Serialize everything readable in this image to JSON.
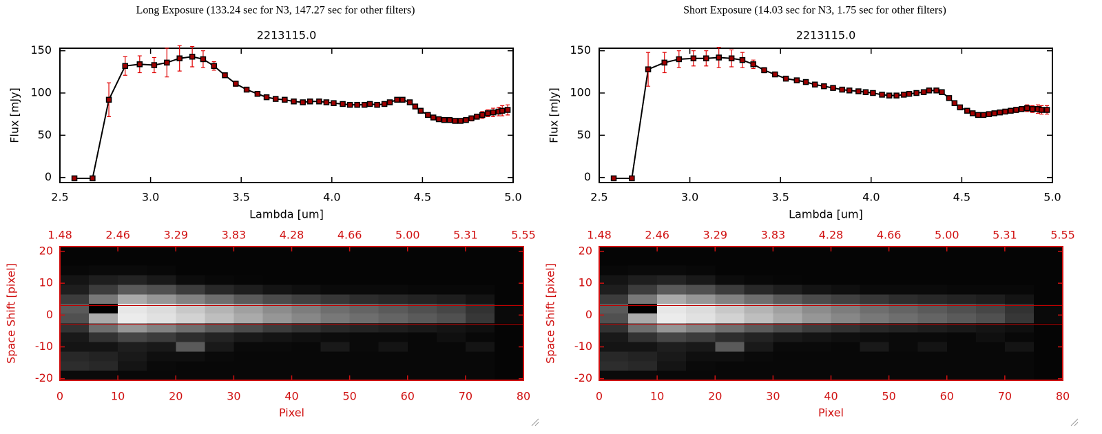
{
  "chart_data": [
    {
      "type": "line",
      "heading": "Long Exposure (133.24 sec for N3, 147.27 sec for other filters)",
      "title": "2213115.0",
      "x_label": "Lambda [um]",
      "y_label": "Flux [mJy]",
      "x": [
        2.58,
        2.68,
        2.77,
        2.86,
        2.94,
        3.02,
        3.09,
        3.16,
        3.23,
        3.29,
        3.35,
        3.41,
        3.47,
        3.53,
        3.59,
        3.64,
        3.69,
        3.74,
        3.79,
        3.84,
        3.88,
        3.93,
        3.97,
        4.01,
        4.06,
        4.1,
        4.14,
        4.18,
        4.21,
        4.25,
        4.29,
        4.32,
        4.36,
        4.39,
        4.43,
        4.46,
        4.49,
        4.53,
        4.56,
        4.59,
        4.62,
        4.65,
        4.68,
        4.71,
        4.74,
        4.77,
        4.8,
        4.83,
        4.86,
        4.89,
        4.92,
        4.94,
        4.97
      ],
      "values": [
        -1,
        -1,
        92,
        132,
        134,
        133,
        136,
        141,
        143,
        140,
        132,
        121,
        111,
        104,
        99,
        95,
        93,
        92,
        90,
        89,
        90,
        90,
        89,
        88,
        87,
        86,
        86,
        86,
        87,
        86,
        87,
        89,
        92,
        92,
        89,
        84,
        79,
        74,
        71,
        69,
        68,
        68,
        67,
        67,
        68,
        70,
        72,
        74,
        76,
        77,
        78,
        79,
        80
      ],
      "errors": [
        0,
        0,
        20,
        11,
        10,
        9,
        17,
        15,
        12,
        10,
        5,
        3,
        3,
        2,
        2,
        2,
        2,
        2,
        2,
        2,
        2,
        2,
        2,
        2,
        2,
        2,
        2,
        2,
        2,
        2,
        2,
        2,
        2,
        2,
        2,
        2,
        2,
        2,
        2,
        2,
        2,
        2,
        2,
        2,
        2,
        3,
        3,
        4,
        4,
        5,
        5,
        6,
        6
      ],
      "line_color": "#000000",
      "marker_color": "#a00000",
      "error_color": "#e00000",
      "xlim": [
        2.5,
        5.0
      ],
      "xticks": [
        2.5,
        {
          "value": 3,
          "label": "3.0"
        },
        3.5,
        {
          "value": 4,
          "label": "4.0"
        },
        4.5,
        {
          "value": 5,
          "label": "5.0"
        }
      ],
      "ylim": [
        -6,
        153
      ],
      "yticks": [
        0,
        50,
        100,
        150
      ]
    },
    {
      "type": "image",
      "x_label": "Pixel",
      "y_label": "Space Shift [pixel]",
      "axis_color": "#d01010",
      "hline_color": "#c00000",
      "xlim": [
        0,
        80
      ],
      "xticks": [
        0,
        10,
        20,
        30,
        40,
        50,
        60,
        70,
        80
      ],
      "x2ticks": [
        {
          "value": 0,
          "label": "1.48"
        },
        {
          "value": 10,
          "label": "2.46"
        },
        {
          "value": 20,
          "label": "3.29"
        },
        {
          "value": 30,
          "label": "3.83"
        },
        {
          "value": 40,
          "label": "4.28"
        },
        {
          "value": 50,
          "label": "4.66"
        },
        {
          "value": 60,
          "label": "5.00"
        },
        {
          "value": 70,
          "label": "5.31"
        },
        {
          "value": 80,
          "label": "5.55"
        }
      ],
      "ylim": [
        -20.5,
        21.5
      ],
      "yticks": [
        -20,
        -10,
        0,
        10,
        20
      ],
      "hlines": [
        3,
        -3
      ],
      "z": [
        [
          5,
          5,
          5,
          5,
          5,
          5,
          5,
          5,
          5,
          5,
          5,
          5,
          5,
          5,
          5,
          5
        ],
        [
          5,
          5,
          5,
          5,
          5,
          5,
          5,
          5,
          5,
          5,
          5,
          5,
          5,
          5,
          5,
          5
        ],
        [
          8,
          10,
          10,
          8,
          5,
          5,
          5,
          5,
          5,
          5,
          5,
          5,
          5,
          5,
          5,
          5
        ],
        [
          20,
          30,
          35,
          25,
          12,
          8,
          6,
          5,
          5,
          5,
          5,
          5,
          5,
          5,
          5,
          5
        ],
        [
          30,
          60,
          90,
          80,
          60,
          40,
          30,
          20,
          15,
          10,
          10,
          10,
          8,
          8,
          8,
          5
        ],
        [
          60,
          120,
          170,
          150,
          130,
          110,
          90,
          75,
          65,
          55,
          45,
          40,
          35,
          30,
          20,
          5
        ],
        [
          90,
          0,
          230,
          220,
          200,
          180,
          160,
          140,
          125,
          110,
          100,
          90,
          80,
          70,
          50,
          10
        ],
        [
          80,
          170,
          235,
          225,
          210,
          190,
          170,
          150,
          135,
          120,
          110,
          100,
          90,
          80,
          55,
          10
        ],
        [
          50,
          110,
          150,
          130,
          110,
          90,
          75,
          60,
          50,
          40,
          35,
          30,
          25,
          20,
          15,
          5
        ],
        [
          25,
          50,
          70,
          60,
          45,
          35,
          25,
          20,
          15,
          12,
          10,
          10,
          8,
          15,
          8,
          5
        ],
        [
          20,
          20,
          30,
          25,
          90,
          25,
          10,
          10,
          8,
          25,
          10,
          20,
          8,
          8,
          20,
          5
        ],
        [
          40,
          35,
          25,
          15,
          15,
          10,
          8,
          8,
          8,
          8,
          8,
          8,
          8,
          8,
          8,
          5
        ],
        [
          45,
          40,
          20,
          10,
          8,
          8,
          8,
          8,
          8,
          8,
          8,
          8,
          8,
          8,
          8,
          5
        ],
        [
          10,
          10,
          8,
          8,
          8,
          8,
          8,
          8,
          8,
          8,
          8,
          8,
          8,
          8,
          8,
          5
        ]
      ]
    },
    {
      "type": "line",
      "heading": "Short Exposure (14.03 sec for N3, 1.75 sec for other filters)",
      "title": "2213115.0",
      "x_label": "Lambda [um]",
      "y_label": "Flux [mJy]",
      "x": [
        2.58,
        2.68,
        2.77,
        2.86,
        2.94,
        3.02,
        3.09,
        3.16,
        3.23,
        3.29,
        3.35,
        3.41,
        3.47,
        3.53,
        3.59,
        3.64,
        3.69,
        3.74,
        3.79,
        3.84,
        3.88,
        3.93,
        3.97,
        4.01,
        4.06,
        4.1,
        4.14,
        4.18,
        4.21,
        4.25,
        4.29,
        4.32,
        4.36,
        4.39,
        4.43,
        4.46,
        4.49,
        4.53,
        4.56,
        4.59,
        4.62,
        4.65,
        4.68,
        4.71,
        4.74,
        4.77,
        4.8,
        4.83,
        4.86,
        4.89,
        4.92,
        4.94,
        4.97
      ],
      "values": [
        -1,
        -1,
        128,
        136,
        140,
        141,
        141,
        142,
        141,
        139,
        134,
        127,
        122,
        117,
        115,
        113,
        110,
        108,
        106,
        104,
        103,
        102,
        101,
        100,
        98,
        97,
        97,
        98,
        99,
        100,
        101,
        103,
        103,
        101,
        94,
        88,
        83,
        79,
        76,
        74,
        74,
        75,
        76,
        77,
        78,
        79,
        80,
        81,
        82,
        81,
        81,
        80,
        80
      ],
      "errors": [
        0,
        0,
        20,
        12,
        10,
        9,
        9,
        12,
        10,
        9,
        5,
        3,
        2,
        2,
        2,
        2,
        2,
        2,
        2,
        2,
        2,
        2,
        2,
        2,
        2,
        2,
        2,
        2,
        2,
        2,
        2,
        2,
        2,
        2,
        2,
        2,
        2,
        2,
        2,
        2,
        2,
        2,
        2,
        2,
        2,
        3,
        3,
        3,
        4,
        4,
        5,
        5,
        5
      ],
      "line_color": "#000000",
      "marker_color": "#a00000",
      "error_color": "#e00000",
      "xlim": [
        2.5,
        5.0
      ],
      "xticks": [
        2.5,
        {
          "value": 3,
          "label": "3.0"
        },
        3.5,
        {
          "value": 4,
          "label": "4.0"
        },
        4.5,
        {
          "value": 5,
          "label": "5.0"
        }
      ],
      "ylim": [
        -6,
        153
      ],
      "yticks": [
        0,
        50,
        100,
        150
      ]
    },
    {
      "type": "image",
      "x_label": "Pixel",
      "y_label": "Space Shift [pixel]",
      "axis_color": "#d01010",
      "hline_color": "#c00000",
      "xlim": [
        0,
        80
      ],
      "xticks": [
        0,
        10,
        20,
        30,
        40,
        50,
        60,
        70,
        80
      ],
      "x2ticks": [
        {
          "value": 0,
          "label": "1.48"
        },
        {
          "value": 10,
          "label": "2.46"
        },
        {
          "value": 20,
          "label": "3.29"
        },
        {
          "value": 30,
          "label": "3.83"
        },
        {
          "value": 40,
          "label": "4.28"
        },
        {
          "value": 50,
          "label": "4.66"
        },
        {
          "value": 60,
          "label": "5.00"
        },
        {
          "value": 70,
          "label": "5.31"
        },
        {
          "value": 80,
          "label": "5.55"
        }
      ],
      "ylim": [
        -20.5,
        21.5
      ],
      "yticks": [
        -20,
        -10,
        0,
        10,
        20
      ],
      "hlines": [
        3,
        -3
      ],
      "z": [
        [
          5,
          5,
          5,
          5,
          5,
          5,
          5,
          5,
          5,
          5,
          5,
          5,
          5,
          5,
          5,
          5
        ],
        [
          5,
          5,
          5,
          5,
          5,
          5,
          5,
          5,
          5,
          5,
          5,
          5,
          5,
          5,
          5,
          5
        ],
        [
          8,
          10,
          10,
          8,
          5,
          5,
          5,
          5,
          5,
          5,
          5,
          5,
          5,
          5,
          5,
          5
        ],
        [
          20,
          30,
          35,
          25,
          12,
          8,
          6,
          5,
          5,
          5,
          5,
          5,
          5,
          5,
          5,
          5
        ],
        [
          30,
          60,
          90,
          80,
          60,
          40,
          30,
          20,
          15,
          10,
          10,
          10,
          8,
          8,
          8,
          5
        ],
        [
          60,
          120,
          170,
          150,
          130,
          110,
          90,
          75,
          65,
          55,
          45,
          40,
          35,
          30,
          20,
          5
        ],
        [
          90,
          0,
          230,
          220,
          200,
          180,
          160,
          140,
          125,
          110,
          100,
          90,
          80,
          70,
          50,
          10
        ],
        [
          80,
          170,
          235,
          225,
          210,
          190,
          170,
          150,
          135,
          120,
          110,
          100,
          90,
          80,
          55,
          10
        ],
        [
          50,
          110,
          150,
          130,
          110,
          90,
          75,
          60,
          50,
          40,
          35,
          30,
          25,
          20,
          15,
          5
        ],
        [
          25,
          50,
          70,
          60,
          45,
          35,
          25,
          20,
          15,
          12,
          10,
          10,
          8,
          15,
          8,
          5
        ],
        [
          20,
          20,
          30,
          25,
          90,
          25,
          10,
          10,
          8,
          25,
          10,
          20,
          8,
          8,
          20,
          5
        ],
        [
          40,
          35,
          25,
          15,
          15,
          10,
          8,
          8,
          8,
          8,
          8,
          8,
          8,
          8,
          8,
          5
        ],
        [
          45,
          40,
          20,
          10,
          8,
          8,
          8,
          8,
          8,
          8,
          8,
          8,
          8,
          8,
          8,
          5
        ],
        [
          10,
          10,
          8,
          8,
          8,
          8,
          8,
          8,
          8,
          8,
          8,
          8,
          8,
          8,
          8,
          5
        ]
      ]
    }
  ]
}
